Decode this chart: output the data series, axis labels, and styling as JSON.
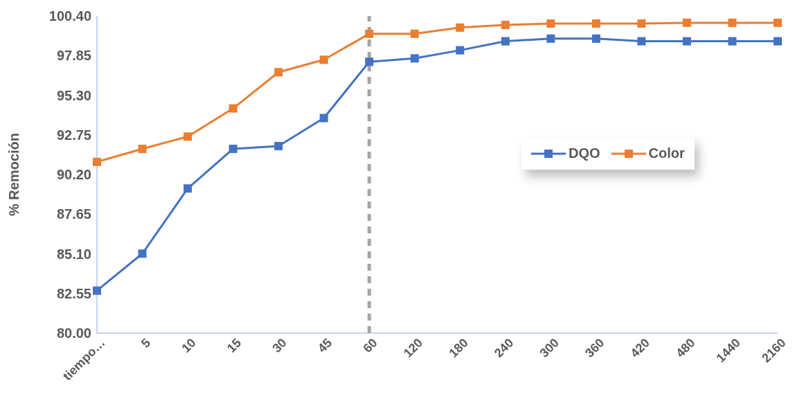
{
  "chart_data": {
    "type": "line",
    "ylabel": "% Remoción",
    "categories": [
      "tiempo…",
      "5",
      "10",
      "15",
      "30",
      "45",
      "60",
      "120",
      "180",
      "240",
      "300",
      "360",
      "420",
      "480",
      "1440",
      "2160"
    ],
    "series": [
      {
        "name": "DQO",
        "color": "#4472c4",
        "values": [
          82.73,
          85.11,
          89.3,
          91.85,
          92.03,
          93.83,
          97.45,
          97.67,
          98.19,
          98.77,
          98.94,
          98.94,
          98.77,
          98.77,
          98.77,
          98.77
        ]
      },
      {
        "name": "Color",
        "color": "#ed7d31",
        "values": [
          91.01,
          91.85,
          92.64,
          94.45,
          96.78,
          97.58,
          99.25,
          99.25,
          99.65,
          99.82,
          99.91,
          99.91,
          99.91,
          99.96,
          99.96,
          99.96
        ]
      }
    ],
    "ylim": [
      80,
      100.4
    ],
    "yticks": [
      {
        "value": 80,
        "label": "80.00"
      },
      {
        "value": 82.55,
        "label": "82.55"
      },
      {
        "value": 85.1,
        "label": "85.10"
      },
      {
        "value": 87.65,
        "label": "87.65"
      },
      {
        "value": 90.2,
        "label": "90.20"
      },
      {
        "value": 92.75,
        "label": "92.75"
      },
      {
        "value": 95.3,
        "label": "95.30"
      },
      {
        "value": 97.85,
        "label": "97.85"
      },
      {
        "value": 100.4,
        "label": "100.40"
      }
    ],
    "ref_lines": [
      {
        "axis": "x",
        "value": "60",
        "color": "#a5a5a5",
        "line_style": "dashed"
      }
    ],
    "legend": "right",
    "marker": "square",
    "line_style": "solid",
    "grid": false
  }
}
